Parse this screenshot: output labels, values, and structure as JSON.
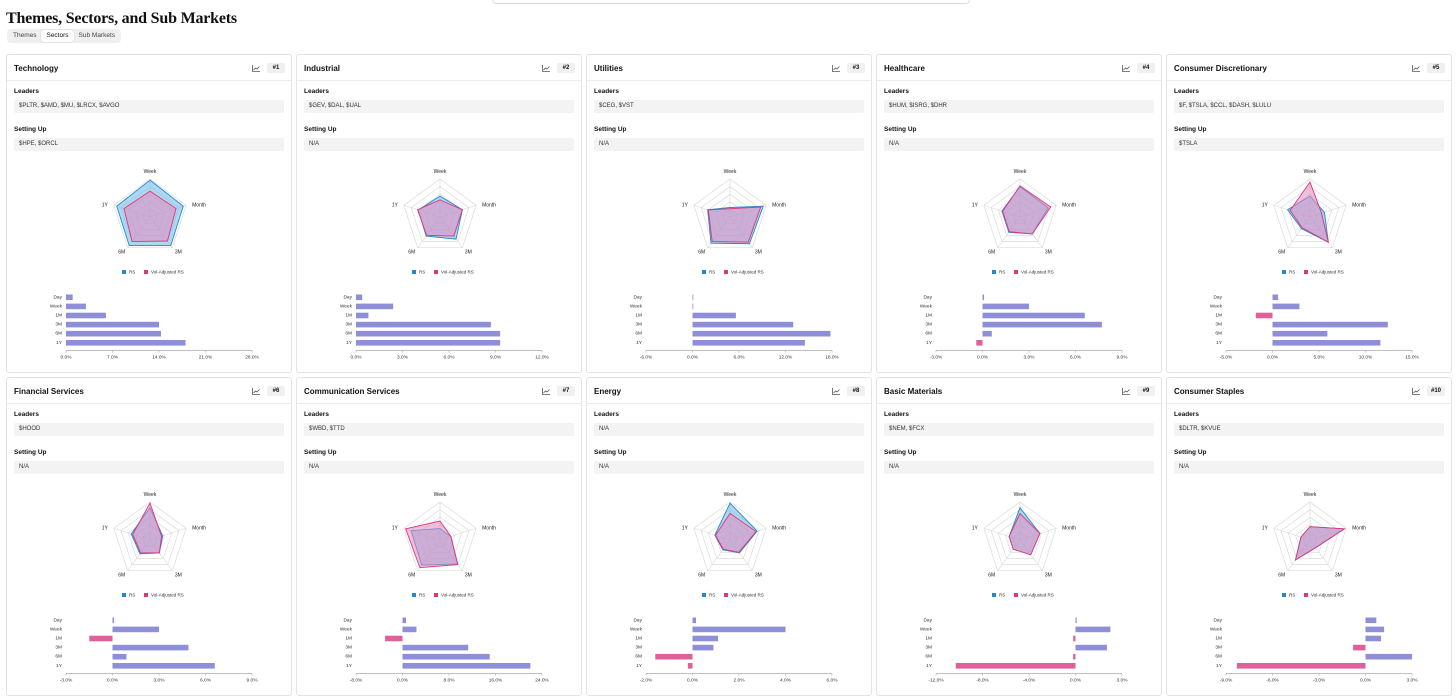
{
  "page": {
    "title": "Themes, Sectors, and Sub Markets"
  },
  "tabs": [
    {
      "label": "Themes",
      "active": false
    },
    {
      "label": "Sectors",
      "active": true
    },
    {
      "label": "Sub Markets",
      "active": false
    }
  ],
  "labels": {
    "leaders": "Leaders",
    "setting_up": "Setting Up",
    "legend_rs": "RS",
    "legend_vol": "Vol-Adjusted RS"
  },
  "colors": {
    "rs": "#1f8ad1",
    "vol": "#e0357a",
    "bar_pos": "#8f8fd8",
    "bar_neg": "#e0609a",
    "rs_fill": "#6bb8e6",
    "vol_fill": "#e48bbd"
  },
  "radar_axes": [
    "Week",
    "Month",
    "3M",
    "6M",
    "1Y"
  ],
  "bar_rows": [
    "Day",
    "Week",
    "1M",
    "3M",
    "6M",
    "1Y"
  ],
  "sectors": [
    {
      "name": "Technology",
      "rank": "#1",
      "leaders": "$PLTR, $AMD, $MU, $LRCX, $AVGO",
      "setting_up": "$HPE, $ORCL",
      "radar": {
        "rs": [
          0.97,
          0.92,
          0.93,
          0.93,
          0.92
        ],
        "vol": [
          0.68,
          0.72,
          0.78,
          0.8,
          0.72
        ]
      },
      "bars": {
        "ticks": [
          "0.0%",
          "7.0%",
          "14.0%",
          "21.0%",
          "28.0%"
        ],
        "min": 0,
        "max": 28,
        "values": [
          1.0,
          3.0,
          6.0,
          14.0,
          14.3,
          18.0
        ]
      }
    },
    {
      "name": "Industrial",
      "rank": "#2",
      "leaders": "$GEV, $DAL, $UAL",
      "setting_up": "N/A",
      "radar": {
        "rs": [
          0.55,
          0.62,
          0.72,
          0.62,
          0.6
        ],
        "vol": [
          0.45,
          0.62,
          0.62,
          0.6,
          0.62
        ]
      },
      "bars": {
        "ticks": [
          "0.0%",
          "3.0%",
          "6.0%",
          "9.0%",
          "12.0%"
        ],
        "min": 0,
        "max": 12,
        "values": [
          0.4,
          2.4,
          0.8,
          8.7,
          9.3,
          9.3
        ]
      }
    },
    {
      "name": "Utilities",
      "rank": "#3",
      "leaders": "$CEG, $VST",
      "setting_up": "N/A",
      "radar": {
        "rs": [
          0.25,
          0.92,
          0.87,
          0.85,
          0.62
        ],
        "vol": [
          0.22,
          0.85,
          0.82,
          0.8,
          0.6
        ]
      },
      "bars": {
        "ticks": [
          "-6.0%",
          "0.0%",
          "6.0%",
          "12.0%",
          "18.0%"
        ],
        "min": -6,
        "max": 18,
        "values": [
          0.0,
          0.1,
          5.6,
          13.0,
          17.8,
          14.5
        ]
      }
    },
    {
      "name": "Healthcare",
      "rank": "#4",
      "leaders": "$HUM, $ISRG, $DHR",
      "setting_up": "N/A",
      "radar": {
        "rs": [
          0.8,
          0.78,
          0.55,
          0.5,
          0.5
        ],
        "vol": [
          0.82,
          0.85,
          0.55,
          0.48,
          0.48
        ]
      },
      "bars": {
        "ticks": [
          "-3.0%",
          "0.0%",
          "3.0%",
          "6.0%",
          "9.0%"
        ],
        "min": -3,
        "max": 9,
        "values": [
          0.1,
          3.0,
          6.6,
          7.7,
          0.6,
          -0.4
        ]
      }
    },
    {
      "name": "Consumer Discretionary",
      "rank": "#5",
      "leaders": "$F, $TSLA, $CCL, $DASH, $LULU",
      "setting_up": "$TSLA",
      "radar": {
        "rs": [
          0.55,
          0.4,
          0.82,
          0.38,
          0.62
        ],
        "vol": [
          0.92,
          0.32,
          0.82,
          0.35,
          0.55
        ]
      },
      "bars": {
        "ticks": [
          "-5.0%",
          "0.0%",
          "5.0%",
          "10.0%",
          "15.0%"
        ],
        "min": -5,
        "max": 15,
        "values": [
          0.6,
          2.9,
          -1.8,
          12.4,
          5.9,
          11.6
        ]
      }
    },
    {
      "name": "Financial Services",
      "rank": "#6",
      "leaders": "$HOOD",
      "setting_up": "N/A",
      "radar": {
        "rs": [
          0.85,
          0.35,
          0.42,
          0.45,
          0.52
        ],
        "vol": [
          0.97,
          0.32,
          0.42,
          0.42,
          0.48
        ]
      },
      "bars": {
        "ticks": [
          "-3.0%",
          "0.0%",
          "3.0%",
          "6.0%",
          "9.0%"
        ],
        "min": -3,
        "max": 9,
        "values": [
          0.1,
          3.0,
          -1.5,
          4.9,
          0.9,
          6.6
        ]
      }
    },
    {
      "name": "Communication Services",
      "rank": "#7",
      "leaders": "$WBD, $TTD",
      "setting_up": "N/A",
      "radar": {
        "rs": [
          0.3,
          0.3,
          0.78,
          0.82,
          0.8
        ],
        "vol": [
          0.5,
          0.3,
          0.8,
          0.9,
          0.95
        ]
      },
      "bars": {
        "ticks": [
          "-8.0%",
          "0.0%",
          "8.0%",
          "16.0%",
          "24.0%"
        ],
        "min": -8,
        "max": 24,
        "values": [
          0.6,
          2.4,
          -3.0,
          11.3,
          15.0,
          22.0
        ]
      }
    },
    {
      "name": "Energy",
      "rank": "#8",
      "leaders": "N/A",
      "setting_up": "N/A",
      "radar": {
        "rs": [
          0.97,
          0.75,
          0.42,
          0.32,
          0.42
        ],
        "vol": [
          0.7,
          0.72,
          0.4,
          0.3,
          0.4
        ]
      },
      "bars": {
        "ticks": [
          "-2.0%",
          "0.0%",
          "2.0%",
          "4.0%",
          "6.0%"
        ],
        "min": -2,
        "max": 6,
        "values": [
          0.15,
          4.0,
          1.1,
          0.9,
          -1.6,
          -0.2
        ]
      }
    },
    {
      "name": "Basic Materials",
      "rank": "#9",
      "leaders": "$NEM, $FCX",
      "setting_up": "N/A",
      "radar": {
        "rs": [
          0.85,
          0.55,
          0.48,
          0.3,
          0.3
        ],
        "vol": [
          0.7,
          0.55,
          0.48,
          0.3,
          0.3
        ]
      },
      "bars": {
        "ticks": [
          "-12.0%",
          "-8.0%",
          "-4.0%",
          "0.0%",
          "3.0%"
        ],
        "min": -12,
        "max": 4,
        "values": [
          0.1,
          3.0,
          -0.2,
          2.7,
          -0.2,
          -10.3
        ]
      }
    },
    {
      "name": "Consumer Staples",
      "rank": "#10",
      "leaders": "$DLTR, $KVUE",
      "setting_up": "N/A",
      "radar": {
        "rs": [
          0.35,
          0.95,
          0.25,
          0.65,
          0.25
        ],
        "vol": [
          0.35,
          0.95,
          0.25,
          0.65,
          0.25
        ]
      },
      "bars": {
        "ticks": [
          "-9.0%",
          "-6.0%",
          "-3.0%",
          "0.0%",
          "3.0%"
        ],
        "min": -9,
        "max": 3,
        "values": [
          0.7,
          1.2,
          1.0,
          -0.8,
          3.0,
          -8.3
        ]
      }
    }
  ]
}
